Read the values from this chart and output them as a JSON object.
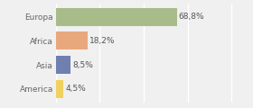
{
  "categories": [
    "Europa",
    "Africa",
    "Asia",
    "America"
  ],
  "values": [
    68.8,
    18.2,
    8.5,
    4.5
  ],
  "labels": [
    "68,8%",
    "18,2%",
    "8,5%",
    "4,5%"
  ],
  "colors": [
    "#a8bc8a",
    "#e8a87c",
    "#6e7fb0",
    "#f0d060"
  ],
  "xlim": [
    0,
    105
  ],
  "background_color": "#f0f0f0",
  "bar_height": 0.75,
  "label_fontsize": 6.5,
  "tick_fontsize": 6.5,
  "grid_color": "#ffffff",
  "grid_xticks": [
    0,
    25,
    50,
    75,
    100
  ]
}
